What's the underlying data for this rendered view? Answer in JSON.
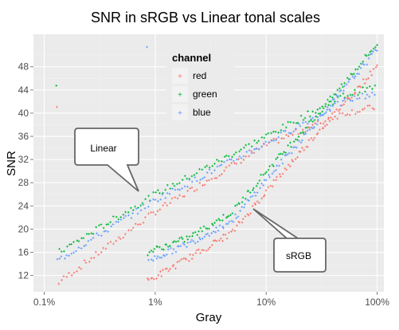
{
  "chart_data": {
    "type": "scatter",
    "title": "SNR in sRGB vs Linear tonal scales",
    "xlabel": "Gray",
    "ylabel": "SNR",
    "x_scale": "log",
    "xlim": [
      0.0008,
      1.15
    ],
    "ylim": [
      9.2,
      53.6
    ],
    "x_ticks": [
      {
        "value": 0.001,
        "label": "0.1%"
      },
      {
        "value": 0.01,
        "label": "1%"
      },
      {
        "value": 0.1,
        "label": "10%"
      },
      {
        "value": 1,
        "label": "100%"
      }
    ],
    "y_ticks": [
      12,
      16,
      20,
      24,
      28,
      32,
      36,
      40,
      44,
      48
    ],
    "grid": true,
    "legend": {
      "title": "channel",
      "position": "top-center",
      "entries": [
        "red",
        "green",
        "blue"
      ]
    },
    "colors": {
      "red": "#F8766D",
      "green": "#00BA38",
      "blue": "#619CFF"
    },
    "series": [
      {
        "name": "red",
        "color": "#F8766D",
        "scale": "Linear",
        "points": [
          [
            0.0013,
            10.6
          ],
          [
            0.01,
            23.0
          ],
          [
            0.1,
            34.5
          ],
          [
            0.5,
            40.0
          ],
          [
            0.95,
            41.0
          ]
        ]
      },
      {
        "name": "green",
        "color": "#00BA38",
        "scale": "Linear",
        "points": [
          [
            0.0013,
            15.8
          ],
          [
            0.01,
            26.0
          ],
          [
            0.1,
            36.0
          ],
          [
            0.5,
            43.0
          ],
          [
            0.95,
            44.5
          ]
        ]
      },
      {
        "name": "blue",
        "color": "#619CFF",
        "scale": "Linear",
        "points": [
          [
            0.0013,
            14.5
          ],
          [
            0.01,
            25.0
          ],
          [
            0.1,
            34.8
          ],
          [
            0.5,
            42.0
          ],
          [
            0.95,
            43.5
          ]
        ]
      },
      {
        "name": "red",
        "color": "#F8766D",
        "scale": "sRGB",
        "points": [
          [
            0.0085,
            11.0
          ],
          [
            0.02,
            15.0
          ],
          [
            0.05,
            19.5
          ],
          [
            0.1,
            26.5
          ],
          [
            0.3,
            37.0
          ],
          [
            1.0,
            48.0
          ]
        ]
      },
      {
        "name": "green",
        "color": "#00BA38",
        "scale": "sRGB",
        "points": [
          [
            0.0085,
            16.0
          ],
          [
            0.02,
            18.5
          ],
          [
            0.05,
            23.0
          ],
          [
            0.1,
            30.0
          ],
          [
            0.3,
            40.0
          ],
          [
            1.0,
            52.0
          ]
        ]
      },
      {
        "name": "blue",
        "color": "#619CFF",
        "scale": "sRGB",
        "points": [
          [
            0.0085,
            14.5
          ],
          [
            0.02,
            17.5
          ],
          [
            0.05,
            21.5
          ],
          [
            0.1,
            28.5
          ],
          [
            0.3,
            39.0
          ],
          [
            1.0,
            51.0
          ]
        ]
      }
    ],
    "annotations": [
      {
        "text": "Linear",
        "target": [
          0.0116,
          25.3
        ]
      },
      {
        "text": "sRGB",
        "target": [
          0.085,
          23.5
        ]
      }
    ]
  }
}
